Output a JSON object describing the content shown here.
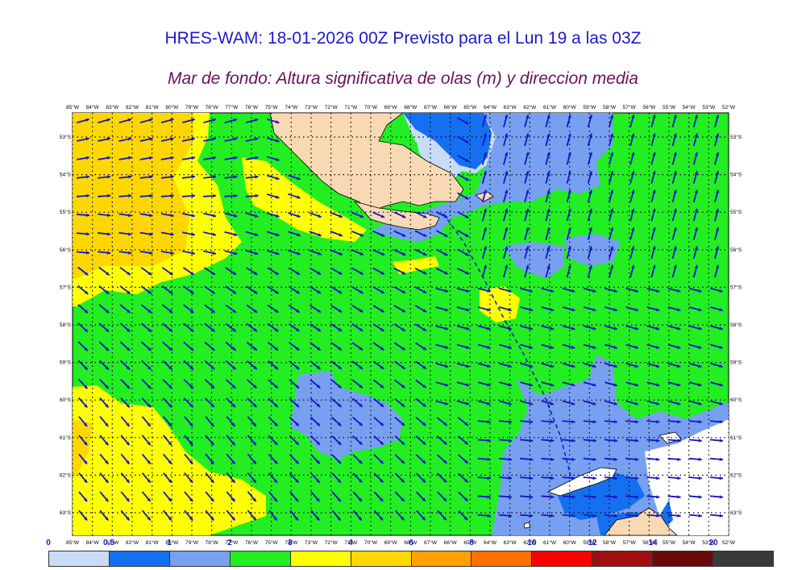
{
  "title": "HRES-WAM: 18-01-2026 00Z Previsto para el Lun 19 a las 03Z",
  "subtitle": "Mar de fondo: Altura significativa de olas (m) y direccion media",
  "map": {
    "lon_labels": [
      "85°W",
      "84°W",
      "83°W",
      "82°W",
      "81°W",
      "80°W",
      "79°W",
      "78°W",
      "77°W",
      "76°W",
      "75°W",
      "74°W",
      "73°W",
      "72°W",
      "71°W",
      "70°W",
      "69°W",
      "68°W",
      "67°W",
      "66°W",
      "65°W",
      "64°W",
      "63°W",
      "62°W",
      "61°W",
      "60°W",
      "59°W",
      "58°W",
      "57°W",
      "56°W",
      "55°W",
      "54°W",
      "53°W",
      "52°W"
    ],
    "lat_labels": [
      "53°S",
      "54°S",
      "55°S",
      "56°S",
      "57°S",
      "58°S",
      "59°S",
      "60°S",
      "61°S",
      "62°S",
      "63°S"
    ],
    "colors": {
      "land": "#f9d9b3",
      "sea_bg": "#22ee22",
      "grid": "#000000",
      "arrow": "#1414c8"
    }
  },
  "colorbar": {
    "ticks": [
      "0",
      "0.5",
      "1",
      "2",
      "3",
      "4",
      "6",
      "8",
      "10",
      "12",
      "14",
      "20"
    ],
    "colors": [
      "#c8dcf8",
      "#1470f0",
      "#78a0f0",
      "#22ee22",
      "#ffff00",
      "#ffd700",
      "#ffa000",
      "#ff7000",
      "#ff0000",
      "#a01010",
      "#6a0a0a",
      "#3a3a3a"
    ]
  }
}
